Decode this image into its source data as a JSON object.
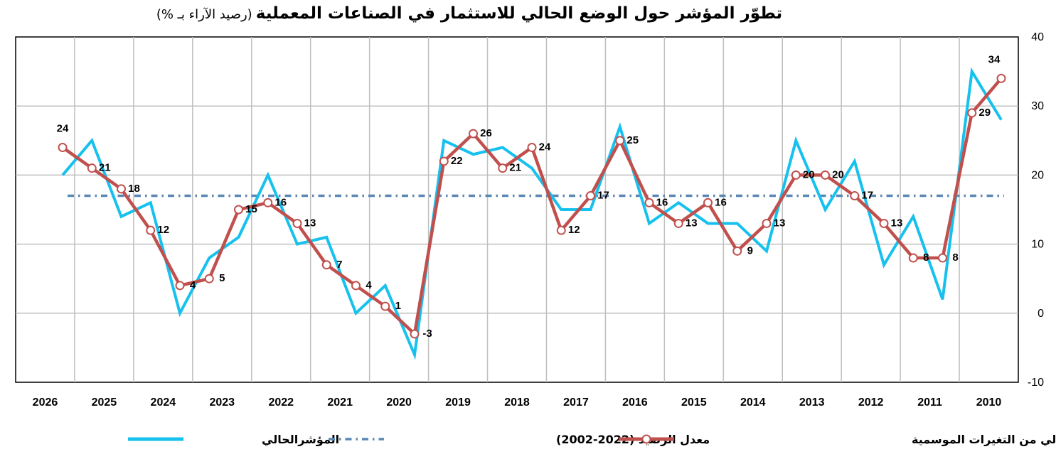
{
  "chart_data": {
    "type": "line",
    "title": "تطوّر المؤشر حول الوضع الحالي للاستثمار في الصناعات المعملية",
    "subtitle": "(رصيد الآراء بـ %)",
    "x_direction": "right-to-left",
    "xlabel": "",
    "ylabel": "",
    "ylim": [
      -10,
      40
    ],
    "yticks": [
      "40",
      "30",
      "20",
      "10",
      "0",
      "-10"
    ],
    "grid": true,
    "y_axis_position": "right",
    "legend_position": "bottom",
    "x_tick_labels": [
      "2010",
      "2011",
      "2012",
      "2013",
      "2014",
      "2015",
      "2016",
      "2017",
      "2018",
      "2019",
      "2020",
      "2021",
      "2022",
      "2023",
      "2024",
      "2025",
      "2026"
    ],
    "series": [
      {
        "name": "المؤشرالحالي",
        "color": "#17C1EE",
        "values": [
          28,
          35,
          2,
          14,
          7,
          22,
          15,
          25,
          9,
          13,
          13,
          16,
          13,
          27,
          15,
          15,
          21,
          24,
          23,
          25,
          -6,
          4,
          0,
          11,
          10,
          20,
          11,
          8,
          0,
          16,
          14,
          25,
          20
        ]
      },
      {
        "name": "المؤشرالحالي خالي من التغيرات الموسمية",
        "color": "#C0504D",
        "values": [
          34,
          29,
          8,
          8,
          13,
          17,
          20,
          20,
          13,
          9,
          16,
          13,
          16,
          25,
          17,
          12,
          24,
          21,
          26,
          22,
          -3,
          1,
          4,
          7,
          13,
          16,
          15,
          5,
          4,
          12,
          18,
          21,
          24
        ]
      },
      {
        "name": "معدل الرصيد (2022-2002)",
        "color": "#5B87B5",
        "style": "dash-dot",
        "values": [
          17
        ]
      }
    ]
  }
}
